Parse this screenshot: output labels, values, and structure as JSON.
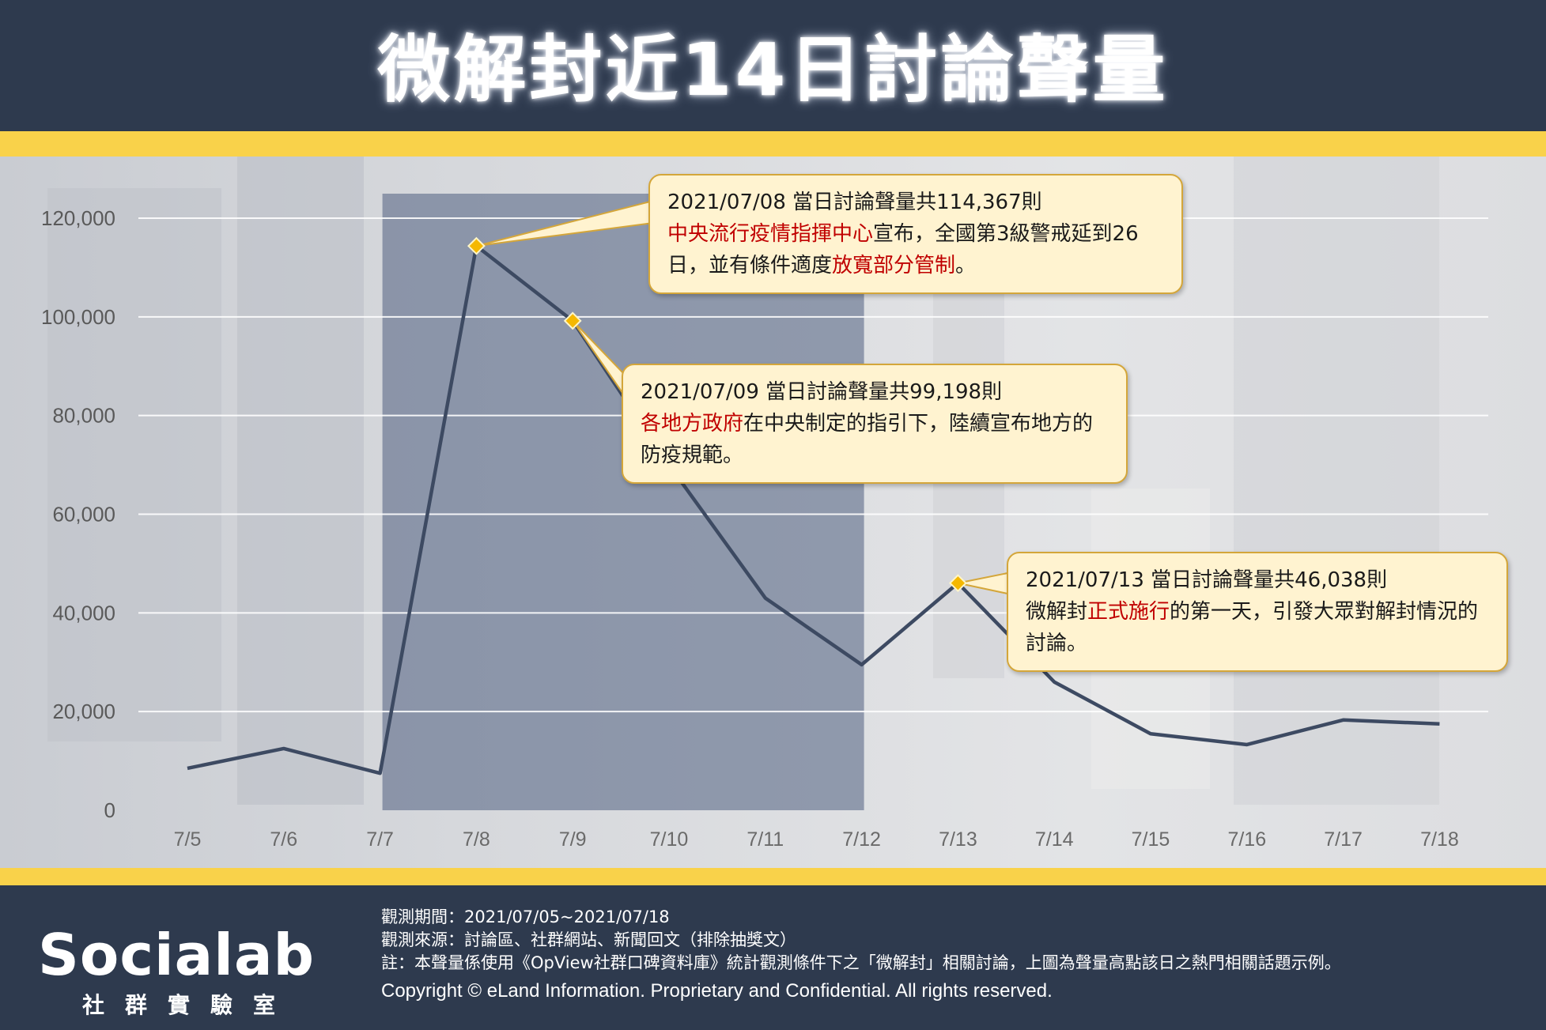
{
  "header": {
    "title": "微解封近14日討論聲量"
  },
  "chart_data": {
    "type": "line",
    "title": "微解封近14日討論聲量",
    "categories": [
      "7/5",
      "7/6",
      "7/7",
      "7/8",
      "7/9",
      "7/10",
      "7/11",
      "7/12",
      "7/13",
      "7/14",
      "7/15",
      "7/16",
      "7/17",
      "7/18"
    ],
    "series": [
      {
        "values": [
          8500,
          12500,
          7500,
          114367,
          99198,
          70000,
          43000,
          29500,
          46038,
          26000,
          15500,
          13300,
          18300,
          17500
        ]
      }
    ],
    "ylim": [
      0,
      120000
    ],
    "yticks": [
      0,
      20000,
      40000,
      60000,
      80000,
      100000,
      120000
    ],
    "ytick_labels": [
      "0",
      "20,000",
      "40,000",
      "60,000",
      "80,000",
      "100,000",
      "120,000"
    ],
    "highlight_range": [
      "7/7",
      "7/12"
    ],
    "highlight_points": [
      "7/8",
      "7/9",
      "7/13"
    ],
    "grid": true,
    "line_color": "#3d4a62",
    "marker_color": "#f5b800",
    "annotations": [
      {
        "point": "7/8",
        "line1": "2021/07/08 當日討論聲量共114,367則",
        "parts": [
          {
            "text": "中央流行疫情指揮中心",
            "highlight": true
          },
          {
            "text": "宣布，全國第3級警戒延到26日，並有條件適度",
            "highlight": false
          },
          {
            "text": "放寬部分管制",
            "highlight": true
          },
          {
            "text": "。",
            "highlight": false
          }
        ]
      },
      {
        "point": "7/9",
        "line1": "2021/07/09 當日討論聲量共99,198則",
        "parts": [
          {
            "text": "各地方政府",
            "highlight": true
          },
          {
            "text": "在中央制定的指引下，陸續宣布地方的防疫規範。",
            "highlight": false
          }
        ]
      },
      {
        "point": "7/13",
        "line1": "2021/07/13 當日討論聲量共46,038則",
        "parts": [
          {
            "text": "微解封",
            "highlight": false
          },
          {
            "text": "正式施行",
            "highlight": true
          },
          {
            "text": "的第一天，引發大眾對解封情況的討論。",
            "highlight": false
          }
        ]
      }
    ]
  },
  "footer": {
    "logo_text": "Socialab",
    "logo_sub": "社群實驗室",
    "period": "觀測期間：2021/07/05~2021/07/18",
    "source": "觀測來源：討論區、社群網站、新聞回文（排除抽獎文）",
    "note": "註：本聲量係使用《OpView社群口碑資料庫》統計觀測條件下之「微解封」相關討論，上圖為聲量高點該日之熱門相關話題示例。",
    "copyright": "Copyright © eLand Information. Proprietary and Confidential. All rights reserved."
  },
  "colors": {
    "navy": "#2e3a4e",
    "yellow": "#f9d24a",
    "highlight_text": "#c00000",
    "callout_bg": "#fff3d0"
  }
}
